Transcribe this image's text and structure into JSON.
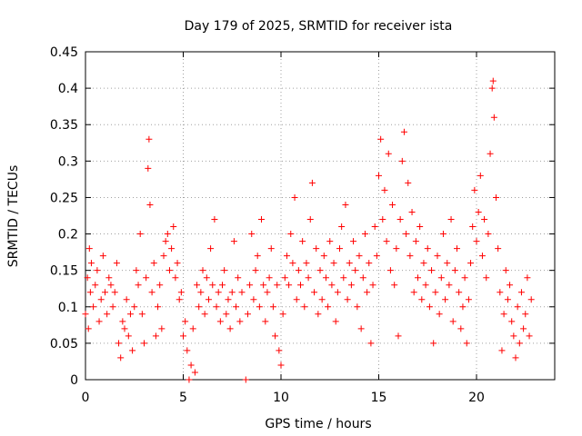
{
  "chart_data": {
    "type": "scatter",
    "title": "Day 179 of 2025, SRMTID for receiver ista",
    "xlabel": "GPS time / hours",
    "ylabel": "SRMTID / TECUs",
    "xlim": [
      0,
      24
    ],
    "ylim": [
      0,
      0.45
    ],
    "x_ticks": [
      0,
      5,
      10,
      15,
      20
    ],
    "y_ticks": [
      0,
      0.05,
      0.1,
      0.15,
      0.2,
      0.25,
      0.3,
      0.35,
      0.4,
      0.45
    ],
    "x_tick_labels": [
      "0",
      "5",
      "10",
      "15",
      "20"
    ],
    "y_tick_labels": [
      "0",
      "0.05",
      "0.1",
      "0.15",
      "0.2",
      "0.25",
      "0.3",
      "0.35",
      "0.4",
      "0.45"
    ],
    "grid": true,
    "marker": "+",
    "color": "#ff0000",
    "series": [
      {
        "name": "SRMTID",
        "points": [
          [
            0.0,
            0.09
          ],
          [
            0.1,
            0.14
          ],
          [
            0.15,
            0.07
          ],
          [
            0.2,
            0.18
          ],
          [
            0.25,
            0.12
          ],
          [
            0.3,
            0.16
          ],
          [
            0.4,
            0.1
          ],
          [
            0.5,
            0.13
          ],
          [
            0.6,
            0.15
          ],
          [
            0.7,
            0.08
          ],
          [
            0.8,
            0.11
          ],
          [
            0.9,
            0.17
          ],
          [
            1.0,
            0.12
          ],
          [
            1.1,
            0.09
          ],
          [
            1.2,
            0.14
          ],
          [
            1.3,
            0.13
          ],
          [
            1.4,
            0.1
          ],
          [
            1.5,
            0.12
          ],
          [
            1.6,
            0.16
          ],
          [
            1.7,
            0.05
          ],
          [
            1.8,
            0.03
          ],
          [
            1.9,
            0.08
          ],
          [
            2.0,
            0.07
          ],
          [
            2.1,
            0.11
          ],
          [
            2.2,
            0.06
          ],
          [
            2.3,
            0.09
          ],
          [
            2.4,
            0.04
          ],
          [
            2.5,
            0.1
          ],
          [
            2.6,
            0.15
          ],
          [
            2.7,
            0.13
          ],
          [
            2.8,
            0.2
          ],
          [
            2.9,
            0.09
          ],
          [
            3.0,
            0.05
          ],
          [
            3.1,
            0.14
          ],
          [
            3.2,
            0.29
          ],
          [
            3.25,
            0.33
          ],
          [
            3.3,
            0.24
          ],
          [
            3.4,
            0.12
          ],
          [
            3.5,
            0.16
          ],
          [
            3.6,
            0.06
          ],
          [
            3.7,
            0.1
          ],
          [
            3.8,
            0.13
          ],
          [
            3.9,
            0.07
          ],
          [
            4.0,
            0.17
          ],
          [
            4.1,
            0.19
          ],
          [
            4.2,
            0.2
          ],
          [
            4.3,
            0.15
          ],
          [
            4.4,
            0.18
          ],
          [
            4.5,
            0.21
          ],
          [
            4.6,
            0.14
          ],
          [
            4.7,
            0.16
          ],
          [
            4.8,
            0.11
          ],
          [
            4.9,
            0.12
          ],
          [
            5.0,
            0.06
          ],
          [
            5.1,
            0.08
          ],
          [
            5.2,
            0.04
          ],
          [
            5.3,
            0.0
          ],
          [
            5.4,
            0.02
          ],
          [
            5.5,
            0.07
          ],
          [
            5.6,
            0.01
          ],
          [
            5.7,
            0.13
          ],
          [
            5.8,
            0.1
          ],
          [
            5.9,
            0.12
          ],
          [
            6.0,
            0.15
          ],
          [
            6.1,
            0.09
          ],
          [
            6.2,
            0.14
          ],
          [
            6.3,
            0.11
          ],
          [
            6.4,
            0.18
          ],
          [
            6.5,
            0.13
          ],
          [
            6.6,
            0.22
          ],
          [
            6.7,
            0.1
          ],
          [
            6.8,
            0.12
          ],
          [
            6.9,
            0.08
          ],
          [
            7.0,
            0.13
          ],
          [
            7.1,
            0.15
          ],
          [
            7.2,
            0.09
          ],
          [
            7.3,
            0.11
          ],
          [
            7.4,
            0.07
          ],
          [
            7.5,
            0.12
          ],
          [
            7.6,
            0.19
          ],
          [
            7.7,
            0.1
          ],
          [
            7.8,
            0.14
          ],
          [
            7.9,
            0.08
          ],
          [
            8.0,
            0.12
          ],
          [
            8.2,
            0.0
          ],
          [
            8.3,
            0.09
          ],
          [
            8.4,
            0.13
          ],
          [
            8.5,
            0.2
          ],
          [
            8.6,
            0.11
          ],
          [
            8.7,
            0.15
          ],
          [
            8.8,
            0.17
          ],
          [
            8.9,
            0.1
          ],
          [
            9.0,
            0.22
          ],
          [
            9.1,
            0.13
          ],
          [
            9.2,
            0.08
          ],
          [
            9.3,
            0.12
          ],
          [
            9.4,
            0.14
          ],
          [
            9.5,
            0.18
          ],
          [
            9.6,
            0.1
          ],
          [
            9.7,
            0.06
          ],
          [
            9.8,
            0.13
          ],
          [
            9.9,
            0.04
          ],
          [
            10.0,
            0.02
          ],
          [
            10.1,
            0.09
          ],
          [
            10.2,
            0.14
          ],
          [
            10.3,
            0.17
          ],
          [
            10.4,
            0.13
          ],
          [
            10.5,
            0.2
          ],
          [
            10.6,
            0.16
          ],
          [
            10.7,
            0.25
          ],
          [
            10.8,
            0.11
          ],
          [
            10.9,
            0.15
          ],
          [
            11.0,
            0.13
          ],
          [
            11.1,
            0.19
          ],
          [
            11.2,
            0.1
          ],
          [
            11.3,
            0.16
          ],
          [
            11.4,
            0.14
          ],
          [
            11.5,
            0.22
          ],
          [
            11.6,
            0.27
          ],
          [
            11.7,
            0.12
          ],
          [
            11.8,
            0.18
          ],
          [
            11.9,
            0.09
          ],
          [
            12.0,
            0.15
          ],
          [
            12.1,
            0.11
          ],
          [
            12.2,
            0.17
          ],
          [
            12.3,
            0.14
          ],
          [
            12.4,
            0.1
          ],
          [
            12.5,
            0.19
          ],
          [
            12.6,
            0.13
          ],
          [
            12.7,
            0.16
          ],
          [
            12.8,
            0.08
          ],
          [
            12.9,
            0.12
          ],
          [
            13.0,
            0.18
          ],
          [
            13.1,
            0.21
          ],
          [
            13.2,
            0.14
          ],
          [
            13.3,
            0.24
          ],
          [
            13.4,
            0.11
          ],
          [
            13.5,
            0.16
          ],
          [
            13.6,
            0.13
          ],
          [
            13.7,
            0.19
          ],
          [
            13.8,
            0.15
          ],
          [
            13.9,
            0.1
          ],
          [
            14.0,
            0.17
          ],
          [
            14.1,
            0.07
          ],
          [
            14.2,
            0.14
          ],
          [
            14.3,
            0.2
          ],
          [
            14.4,
            0.12
          ],
          [
            14.5,
            0.16
          ],
          [
            14.6,
            0.05
          ],
          [
            14.7,
            0.13
          ],
          [
            14.8,
            0.21
          ],
          [
            14.9,
            0.17
          ],
          [
            15.0,
            0.28
          ],
          [
            15.1,
            0.33
          ],
          [
            15.2,
            0.22
          ],
          [
            15.3,
            0.26
          ],
          [
            15.4,
            0.19
          ],
          [
            15.5,
            0.31
          ],
          [
            15.6,
            0.15
          ],
          [
            15.7,
            0.24
          ],
          [
            15.8,
            0.13
          ],
          [
            15.9,
            0.18
          ],
          [
            16.0,
            0.06
          ],
          [
            16.1,
            0.22
          ],
          [
            16.2,
            0.3
          ],
          [
            16.3,
            0.34
          ],
          [
            16.4,
            0.2
          ],
          [
            16.5,
            0.27
          ],
          [
            16.6,
            0.17
          ],
          [
            16.7,
            0.23
          ],
          [
            16.8,
            0.12
          ],
          [
            16.9,
            0.19
          ],
          [
            17.0,
            0.14
          ],
          [
            17.1,
            0.21
          ],
          [
            17.2,
            0.11
          ],
          [
            17.3,
            0.16
          ],
          [
            17.4,
            0.13
          ],
          [
            17.5,
            0.18
          ],
          [
            17.6,
            0.1
          ],
          [
            17.7,
            0.15
          ],
          [
            17.8,
            0.05
          ],
          [
            17.9,
            0.12
          ],
          [
            18.0,
            0.17
          ],
          [
            18.1,
            0.09
          ],
          [
            18.2,
            0.14
          ],
          [
            18.3,
            0.2
          ],
          [
            18.4,
            0.11
          ],
          [
            18.5,
            0.16
          ],
          [
            18.6,
            0.13
          ],
          [
            18.7,
            0.22
          ],
          [
            18.8,
            0.08
          ],
          [
            18.9,
            0.15
          ],
          [
            19.0,
            0.18
          ],
          [
            19.1,
            0.12
          ],
          [
            19.2,
            0.07
          ],
          [
            19.3,
            0.1
          ],
          [
            19.4,
            0.14
          ],
          [
            19.5,
            0.05
          ],
          [
            19.6,
            0.11
          ],
          [
            19.7,
            0.16
          ],
          [
            19.8,
            0.21
          ],
          [
            19.9,
            0.26
          ],
          [
            20.0,
            0.19
          ],
          [
            20.1,
            0.23
          ],
          [
            20.2,
            0.28
          ],
          [
            20.3,
            0.17
          ],
          [
            20.4,
            0.22
          ],
          [
            20.5,
            0.14
          ],
          [
            20.6,
            0.2
          ],
          [
            20.7,
            0.31
          ],
          [
            20.8,
            0.4
          ],
          [
            20.85,
            0.41
          ],
          [
            20.9,
            0.36
          ],
          [
            21.0,
            0.25
          ],
          [
            21.1,
            0.18
          ],
          [
            21.2,
            0.12
          ],
          [
            21.3,
            0.04
          ],
          [
            21.4,
            0.09
          ],
          [
            21.5,
            0.15
          ],
          [
            21.6,
            0.11
          ],
          [
            21.7,
            0.13
          ],
          [
            21.8,
            0.08
          ],
          [
            21.9,
            0.06
          ],
          [
            22.0,
            0.03
          ],
          [
            22.1,
            0.1
          ],
          [
            22.2,
            0.05
          ],
          [
            22.3,
            0.12
          ],
          [
            22.4,
            0.07
          ],
          [
            22.5,
            0.09
          ],
          [
            22.6,
            0.14
          ],
          [
            22.7,
            0.06
          ],
          [
            22.8,
            0.11
          ]
        ]
      }
    ]
  }
}
